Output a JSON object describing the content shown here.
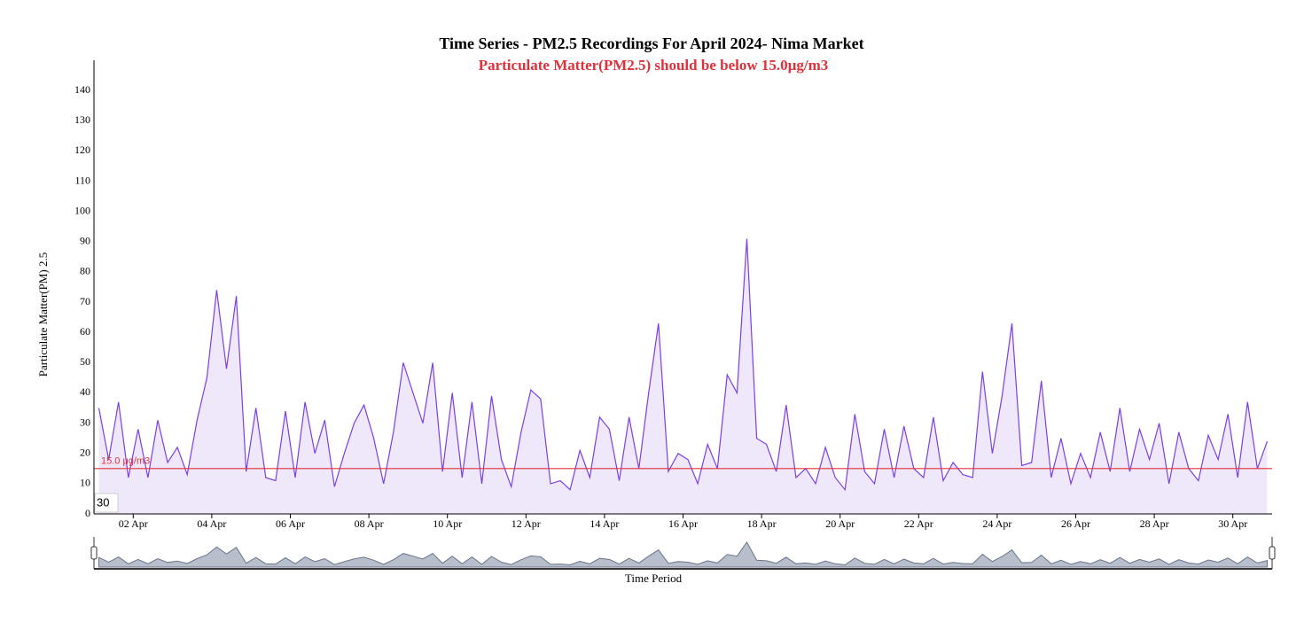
{
  "chart_data": {
    "type": "line",
    "title": "Time Series - PM2.5 Recordings For April 2024- Nima Market",
    "subtitle": "Particulate Matter(PM2.5) should be below 15.0µg/m3",
    "y_label": "Particulate Matter(PM) 2.5",
    "x_label": "Time Period",
    "corner_label": "30",
    "threshold": {
      "value": 15,
      "label": "15.0 μg/m3",
      "color": "#e0303a"
    },
    "ylim": [
      0,
      150
    ],
    "yticks": [
      0,
      10,
      20,
      30,
      40,
      50,
      60,
      70,
      80,
      90,
      100,
      110,
      120,
      130,
      140
    ],
    "categories": [
      null,
      null,
      null,
      null,
      "02 Apr",
      null,
      null,
      null,
      null,
      null,
      null,
      null,
      "04 Apr",
      null,
      null,
      null,
      null,
      null,
      null,
      null,
      "06 Apr",
      null,
      null,
      null,
      null,
      null,
      null,
      null,
      "08 Apr",
      null,
      null,
      null,
      null,
      null,
      null,
      null,
      "10 Apr",
      null,
      null,
      null,
      null,
      null,
      null,
      null,
      "12 Apr",
      null,
      null,
      null,
      null,
      null,
      null,
      null,
      "14 Apr",
      null,
      null,
      null,
      null,
      null,
      null,
      null,
      "16 Apr",
      null,
      null,
      null,
      null,
      null,
      null,
      null,
      "18 Apr",
      null,
      null,
      null,
      null,
      null,
      null,
      null,
      "20 Apr",
      null,
      null,
      null,
      null,
      null,
      null,
      null,
      "22 Apr",
      null,
      null,
      null,
      null,
      null,
      null,
      null,
      "24 Apr",
      null,
      null,
      null,
      null,
      null,
      null,
      null,
      "26 Apr",
      null,
      null,
      null,
      null,
      null,
      null,
      null,
      "28 Apr",
      null,
      null,
      null,
      null,
      null,
      null,
      null,
      "30 Apr",
      null,
      null,
      null
    ],
    "series": [
      {
        "name": "PM2.5",
        "color": "#7b3fe4",
        "fill": "#efe8fb",
        "values": [
          35,
          18,
          37,
          12,
          28,
          12,
          31,
          17,
          22,
          13,
          31,
          45,
          74,
          48,
          72,
          14,
          35,
          12,
          11,
          34,
          12,
          37,
          20,
          31,
          9,
          20,
          30,
          36,
          25,
          10,
          27,
          50,
          40,
          30,
          50,
          14,
          40,
          12,
          37,
          10,
          39,
          18,
          9,
          27,
          41,
          38,
          10,
          11,
          8,
          21,
          12,
          32,
          28,
          11,
          32,
          15,
          40,
          63,
          14,
          20,
          18,
          10,
          23,
          15,
          46,
          40,
          91,
          25,
          23,
          14,
          36,
          12,
          15,
          10,
          22,
          12,
          8,
          33,
          14,
          10,
          28,
          12,
          29,
          15,
          12,
          32,
          11,
          17,
          13,
          12,
          47,
          20,
          39,
          63,
          16,
          17,
          44,
          12,
          25,
          10,
          20,
          12,
          27,
          14,
          35,
          14,
          28,
          18,
          30,
          10,
          27,
          15,
          11,
          26,
          18,
          33,
          12,
          37,
          15,
          24
        ]
      }
    ]
  }
}
